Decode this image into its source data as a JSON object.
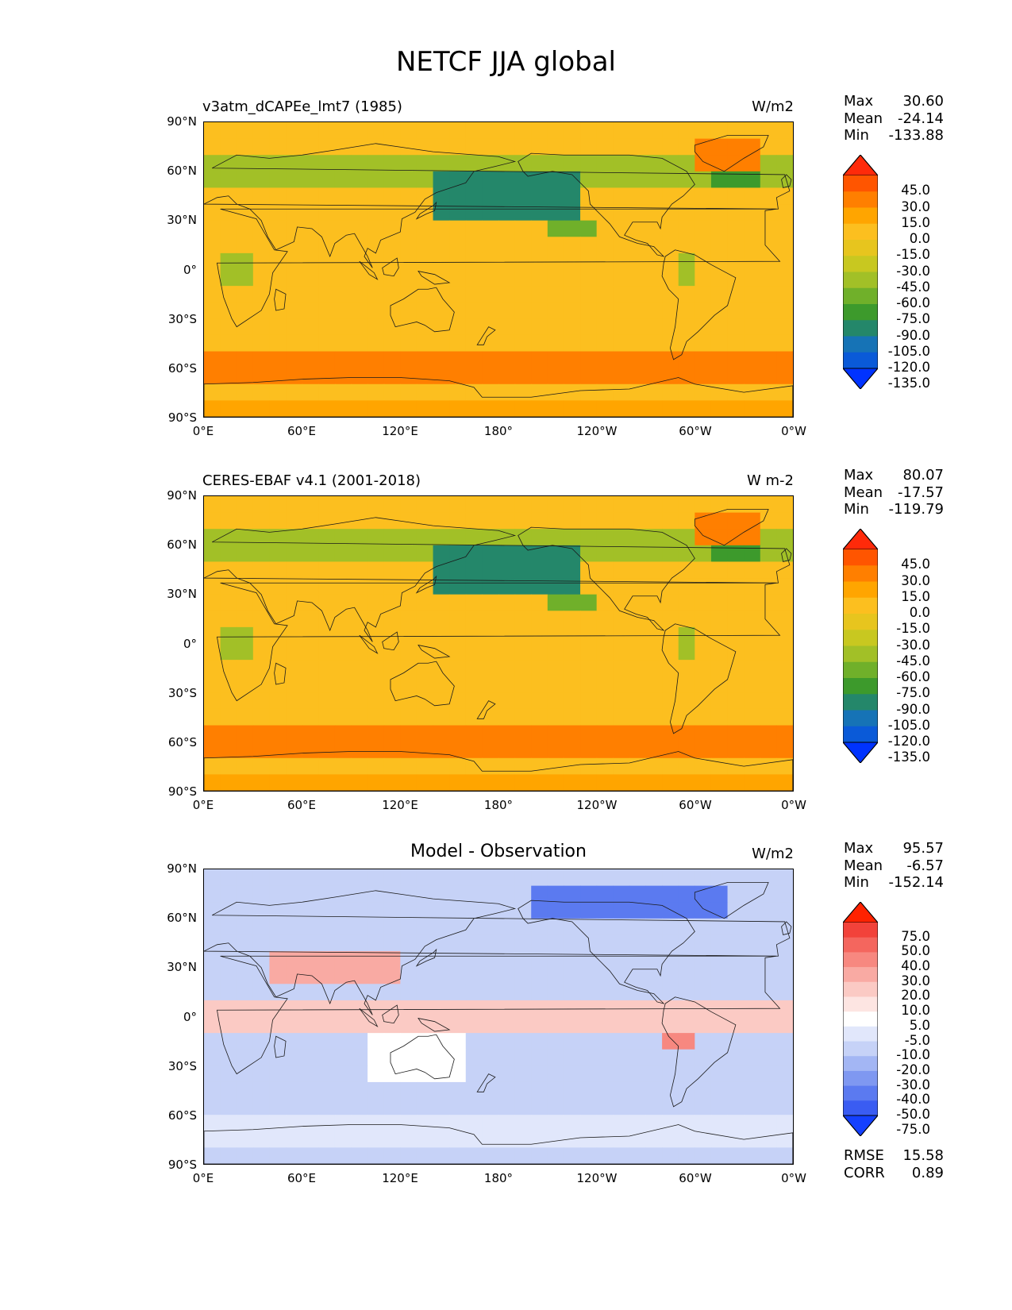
{
  "figure": {
    "title": "NETCF JJA global"
  },
  "panels": [
    {
      "left_title": "v3atm_dCAPEe_lmt7 (1985)",
      "center_title": "",
      "units": "W/m2",
      "stats": [
        {
          "label": "Max",
          "value": "30.60"
        },
        {
          "label": "Mean",
          "value": "-24.14"
        },
        {
          "label": "Min",
          "value": "-133.88"
        }
      ],
      "colorbar": {
        "labels": [
          "45.0",
          "30.0",
          "15.0",
          "0.0",
          "-15.0",
          "-30.0",
          "-45.0",
          "-60.0",
          "-75.0",
          "-90.0",
          "-105.0",
          "-120.0",
          "-135.0"
        ],
        "colors": [
          "#ff2a0a",
          "#ff5500",
          "#ff7f00",
          "#ffa500",
          "#fcbf1f",
          "#e7c51e",
          "#c8c820",
          "#a2c027",
          "#70b02a",
          "#3d9a2c",
          "#24876a",
          "#1673b6",
          "#0a5ad8",
          "#0033ff"
        ]
      }
    },
    {
      "left_title": "CERES-EBAF v4.1 (2001-2018)",
      "center_title": "",
      "units": "W m-2",
      "stats": [
        {
          "label": "Max",
          "value": "80.07"
        },
        {
          "label": "Mean",
          "value": "-17.57"
        },
        {
          "label": "Min",
          "value": "-119.79"
        }
      ],
      "colorbar": {
        "labels": [
          "45.0",
          "30.0",
          "15.0",
          "0.0",
          "-15.0",
          "-30.0",
          "-45.0",
          "-60.0",
          "-75.0",
          "-90.0",
          "-105.0",
          "-120.0",
          "-135.0"
        ],
        "colors": [
          "#ff2a0a",
          "#ff5500",
          "#ff7f00",
          "#ffa500",
          "#fcbf1f",
          "#e7c51e",
          "#c8c820",
          "#a2c027",
          "#70b02a",
          "#3d9a2c",
          "#24876a",
          "#1673b6",
          "#0a5ad8",
          "#0033ff"
        ]
      }
    },
    {
      "left_title": "",
      "center_title": "Model - Observation",
      "units": "W/m2",
      "stats": [
        {
          "label": "Max",
          "value": "95.57"
        },
        {
          "label": "Mean",
          "value": "-6.57"
        },
        {
          "label": "Min",
          "value": "-152.14"
        }
      ],
      "extra_stats": [
        {
          "label": "RMSE",
          "value": "15.58"
        },
        {
          "label": "CORR",
          "value": "0.89"
        }
      ],
      "colorbar": {
        "labels": [
          "75.0",
          "50.0",
          "40.0",
          "30.0",
          "20.0",
          "10.0",
          "5.0",
          "-5.0",
          "-10.0",
          "-20.0",
          "-30.0",
          "-40.0",
          "-50.0",
          "-75.0"
        ],
        "colors": [
          "#ff2200",
          "#f2423a",
          "#f4665e",
          "#f78880",
          "#f9aaa3",
          "#fbcac4",
          "#fde5e2",
          "#ffffff",
          "#e1e7fb",
          "#c6d2f7",
          "#a3b6f4",
          "#7f98f1",
          "#5b7af0",
          "#3a5cf2",
          "#1440ff"
        ]
      }
    }
  ],
  "axes": {
    "lat_ticks": [
      "90°N",
      "60°N",
      "30°N",
      "0°",
      "30°S",
      "60°S",
      "90°S"
    ],
    "lon_ticks": [
      "0°E",
      "60°E",
      "120°E",
      "180°",
      "120°W",
      "60°W",
      "0°W"
    ]
  },
  "chart_data": [
    {
      "type": "heatmap",
      "title": "v3atm_dCAPEe_lmt7 (1985)",
      "units": "W/m2",
      "x_ticks": [
        "0°E",
        "60°E",
        "120°E",
        "180°",
        "120°W",
        "60°W",
        "0°W"
      ],
      "y_ticks": [
        "90°N",
        "60°N",
        "30°N",
        "0°",
        "30°S",
        "60°S",
        "90°S"
      ],
      "xlim": [
        0,
        360
      ],
      "ylim": [
        -90,
        90
      ],
      "levels": [
        -135,
        -120,
        -105,
        -90,
        -75,
        -60,
        -45,
        -30,
        -15,
        0,
        15,
        30,
        45
      ],
      "stats": {
        "max": 30.6,
        "mean": -24.14,
        "min": -133.88
      }
    },
    {
      "type": "heatmap",
      "title": "CERES-EBAF v4.1 (2001-2018)",
      "units": "W m-2",
      "x_ticks": [
        "0°E",
        "60°E",
        "120°E",
        "180°",
        "120°W",
        "60°W",
        "0°W"
      ],
      "y_ticks": [
        "90°N",
        "60°N",
        "30°N",
        "0°",
        "30°S",
        "60°S",
        "90°S"
      ],
      "xlim": [
        0,
        360
      ],
      "ylim": [
        -90,
        90
      ],
      "levels": [
        -135,
        -120,
        -105,
        -90,
        -75,
        -60,
        -45,
        -30,
        -15,
        0,
        15,
        30,
        45
      ],
      "stats": {
        "max": 80.07,
        "mean": -17.57,
        "min": -119.79
      }
    },
    {
      "type": "heatmap",
      "title": "Model - Observation",
      "units": "W/m2",
      "x_ticks": [
        "0°E",
        "60°E",
        "120°E",
        "180°",
        "120°W",
        "60°W",
        "0°W"
      ],
      "y_ticks": [
        "90°N",
        "60°N",
        "30°N",
        "0°",
        "30°S",
        "60°S",
        "90°S"
      ],
      "xlim": [
        0,
        360
      ],
      "ylim": [
        -90,
        90
      ],
      "levels": [
        -75,
        -50,
        -40,
        -30,
        -20,
        -10,
        -5,
        5,
        10,
        20,
        30,
        40,
        50,
        75
      ],
      "stats": {
        "max": 95.57,
        "mean": -6.57,
        "min": -152.14,
        "rmse": 15.58,
        "corr": 0.89
      }
    }
  ]
}
